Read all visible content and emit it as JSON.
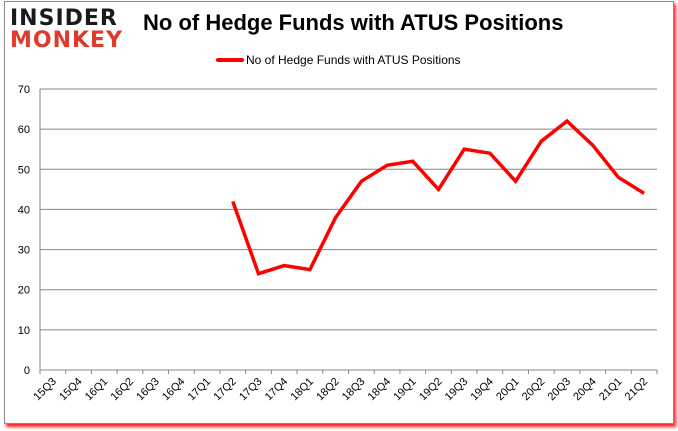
{
  "logo": {
    "line1": "INSIDER",
    "line2": "MONKEY"
  },
  "title": "No of Hedge Funds with ATUS Positions",
  "legend": {
    "label": "No of Hedge Funds with ATUS Positions",
    "color": "#ff0000"
  },
  "chart_data": {
    "type": "line",
    "title": "No of Hedge Funds with ATUS Positions",
    "xlabel": "",
    "ylabel": "",
    "ylim": [
      0,
      70
    ],
    "yticks": [
      0,
      10,
      20,
      30,
      40,
      50,
      60,
      70
    ],
    "grid": true,
    "legend_position": "top",
    "categories": [
      "15Q3",
      "15Q4",
      "16Q1",
      "16Q2",
      "16Q3",
      "16Q4",
      "17Q1",
      "17Q2",
      "17Q3",
      "17Q4",
      "18Q1",
      "18Q2",
      "18Q3",
      "18Q4",
      "19Q1",
      "19Q2",
      "19Q3",
      "19Q4",
      "20Q1",
      "20Q2",
      "20Q3",
      "20Q4",
      "21Q1",
      "21Q2"
    ],
    "series": [
      {
        "name": "No of Hedge Funds with ATUS Positions",
        "color": "#ff0000",
        "values": [
          null,
          null,
          null,
          null,
          null,
          null,
          null,
          42,
          24,
          26,
          25,
          38,
          47,
          51,
          52,
          45,
          55,
          54,
          47,
          57,
          62,
          56,
          48,
          44
        ]
      }
    ]
  }
}
